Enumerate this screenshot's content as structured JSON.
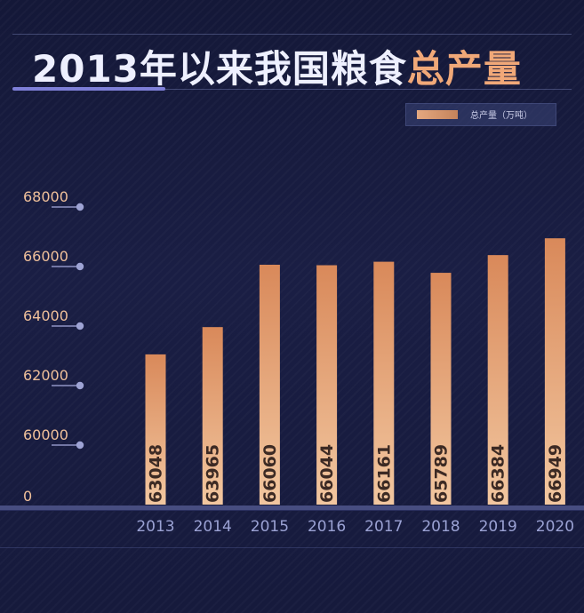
{
  "title": {
    "main": "2013年以来我国粮食",
    "accent": "总产量"
  },
  "legend": {
    "label": "总产量（万吨）"
  },
  "colors": {
    "background": "#161a3c",
    "bar_top": "#d9895a",
    "bar_bottom": "#f2c7a0",
    "accent_text": "#f0a878",
    "title_underline": "#7e7fd8",
    "tick_label": "#f0c09a"
  },
  "chart_data": {
    "type": "bar",
    "categories": [
      "2013",
      "2014",
      "2015",
      "2016",
      "2017",
      "2018",
      "2019",
      "2020"
    ],
    "series": [
      {
        "name": "总产量（万吨）",
        "values": [
          63048,
          63965,
          66060,
          66044,
          66161,
          65789,
          66384,
          66949
        ]
      }
    ],
    "y_ticks": [
      0,
      60000,
      62000,
      64000,
      66000,
      68000
    ],
    "ylim": [
      58000,
      68000
    ],
    "y_axis_broken": true,
    "data_labels_rotated": true,
    "grid": false,
    "legend_position": "top-right"
  }
}
